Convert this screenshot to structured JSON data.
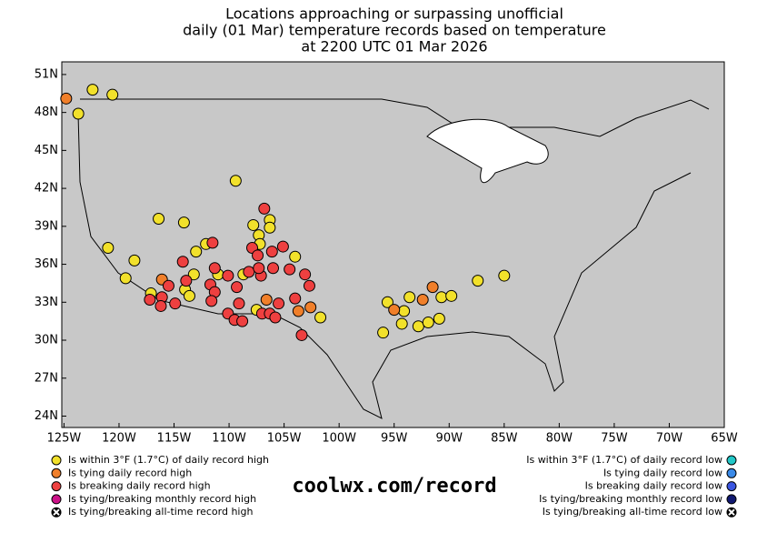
{
  "chart_data": {
    "type": "scatter",
    "title": [
      "Locations approaching or surpassing unofficial",
      "daily (01 Mar) temperature records based on temperature",
      "at 2200 UTC 01 Mar 2026"
    ],
    "annotation": "coolwx.com/record",
    "xlim": [
      -125.2,
      -65
    ],
    "ylim": [
      23.1,
      52
    ],
    "xticks": [
      {
        "value": -125,
        "label": "125W"
      },
      {
        "value": -120,
        "label": "120W"
      },
      {
        "value": -115,
        "label": "115W"
      },
      {
        "value": -110,
        "label": "110W"
      },
      {
        "value": -105,
        "label": "105W"
      },
      {
        "value": -100,
        "label": "100W"
      },
      {
        "value": -95,
        "label": "95W"
      },
      {
        "value": -90,
        "label": "90W"
      },
      {
        "value": -85,
        "label": "85W"
      },
      {
        "value": -80,
        "label": "80W"
      },
      {
        "value": -75,
        "label": "75W"
      },
      {
        "value": -70,
        "label": "70W"
      },
      {
        "value": -65,
        "label": "65W"
      }
    ],
    "yticks": [
      {
        "value": 24,
        "label": "24N"
      },
      {
        "value": 27,
        "label": "27N"
      },
      {
        "value": 30,
        "label": "30N"
      },
      {
        "value": 33,
        "label": "33N"
      },
      {
        "value": 36,
        "label": "36N"
      },
      {
        "value": 39,
        "label": "39N"
      },
      {
        "value": 42,
        "label": "42N"
      },
      {
        "value": 45,
        "label": "45N"
      },
      {
        "value": 48,
        "label": "48N"
      },
      {
        "value": 51,
        "label": "51N"
      }
    ],
    "series": [
      {
        "name": "Is within 3°F (1.7°C) of daily record high",
        "color": "#f2e12b",
        "x": [
          -122.4,
          -120.6,
          -123.7,
          -109.4,
          -121.0,
          -116.4,
          -118.6,
          -114.1,
          -107.8,
          -107.3,
          -107.2,
          -106.3,
          -106.3,
          -104.0,
          -108.7,
          -111.0,
          -113.0,
          -112.1,
          -119.4,
          -117.1,
          -114.0,
          -113.2,
          -113.6,
          -107.5,
          -101.7,
          -95.6,
          -94.1,
          -93.6,
          -94.3,
          -96.0,
          -92.8,
          -91.9,
          -90.9,
          -90.7,
          -89.8,
          -87.4,
          -85.0
        ],
        "values": [
          49.8,
          49.4,
          47.9,
          42.6,
          37.3,
          39.6,
          36.3,
          39.3,
          39.1,
          38.3,
          37.6,
          39.5,
          38.9,
          36.6,
          35.2,
          35.2,
          37.0,
          37.6,
          34.9,
          33.7,
          34.0,
          35.2,
          33.5,
          32.4,
          31.8,
          33.0,
          32.3,
          33.4,
          31.3,
          30.6,
          31.1,
          31.4,
          31.7,
          33.4,
          33.5,
          34.7,
          35.1
        ]
      },
      {
        "name": "Is tying daily record high",
        "color": "#f07f2a",
        "x": [
          -124.8,
          -116.1,
          -106.6,
          -103.7,
          -102.6,
          -95.0,
          -92.4,
          -91.5
        ],
        "values": [
          49.1,
          34.8,
          33.2,
          32.3,
          32.6,
          32.4,
          33.2,
          34.2
        ]
      },
      {
        "name": "Is breaking daily record high",
        "color": "#ee4040",
        "x": [
          -106.8,
          -111.5,
          -107.9,
          -107.4,
          -106.1,
          -105.1,
          -114.2,
          -111.3,
          -110.1,
          -108.2,
          -107.1,
          -106.0,
          -104.5,
          -113.9,
          -115.5,
          -116.1,
          -117.2,
          -116.2,
          -114.9,
          -111.7,
          -111.3,
          -111.6,
          -109.3,
          -109.1,
          -110.1,
          -109.5,
          -108.8,
          -107.0,
          -106.3,
          -105.8,
          -105.5,
          -104.0,
          -103.1,
          -102.7,
          -103.4,
          -107.3
        ],
        "values": [
          40.4,
          37.7,
          37.3,
          36.7,
          37.0,
          37.4,
          36.2,
          35.7,
          35.1,
          35.4,
          35.1,
          35.7,
          35.6,
          34.7,
          34.3,
          33.4,
          33.2,
          32.7,
          32.9,
          34.4,
          33.8,
          33.1,
          34.2,
          32.9,
          32.1,
          31.6,
          31.5,
          32.1,
          32.1,
          31.8,
          32.9,
          33.3,
          35.2,
          34.3,
          30.4,
          35.7
        ]
      },
      {
        "name": "Is tying/breaking monthly record high",
        "color": "#cc1188",
        "x": [],
        "values": []
      },
      {
        "name": "Is tying/breaking all-time record high",
        "color": "#000000",
        "marker": "x",
        "x": [],
        "values": []
      },
      {
        "name": "Is within 3°F (1.7°C) of daily record low",
        "color": "#22c8c8",
        "x": [],
        "values": []
      },
      {
        "name": "Is tying daily record low",
        "color": "#3a8ae8",
        "x": [],
        "values": []
      },
      {
        "name": "Is breaking daily record low",
        "color": "#3a55e0",
        "x": [],
        "values": []
      },
      {
        "name": "Is tying/breaking monthly record low",
        "color": "#101870",
        "x": [],
        "values": []
      },
      {
        "name": "Is tying/breaking all-time record low",
        "color": "#000000",
        "marker": "x",
        "x": [],
        "values": []
      }
    ]
  }
}
